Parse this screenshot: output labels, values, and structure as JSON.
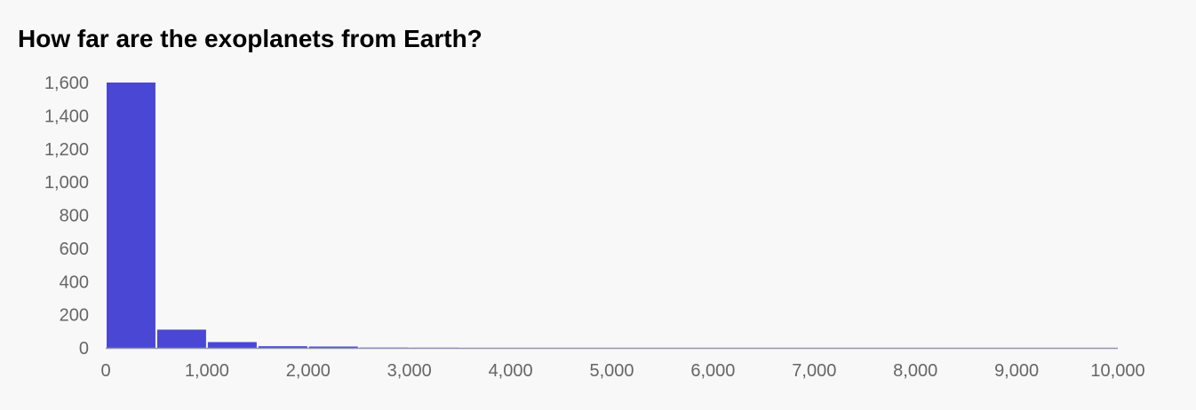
{
  "chart_data": {
    "type": "bar",
    "title": "How far are the exoplanets from Earth?",
    "xlabel": "",
    "ylabel": "",
    "bin_width": 500,
    "bins": [
      {
        "start": 0,
        "end": 500,
        "value": 1600
      },
      {
        "start": 500,
        "end": 1000,
        "value": 110
      },
      {
        "start": 1000,
        "end": 1500,
        "value": 35
      },
      {
        "start": 1500,
        "end": 2000,
        "value": 10
      },
      {
        "start": 2000,
        "end": 2500,
        "value": 8
      },
      {
        "start": 2500,
        "end": 3000,
        "value": 2
      },
      {
        "start": 3000,
        "end": 3500,
        "value": 1
      }
    ],
    "xlim": [
      0,
      10000
    ],
    "ylim": [
      0,
      1600
    ],
    "x_ticks": [
      0,
      1000,
      2000,
      3000,
      4000,
      5000,
      6000,
      7000,
      8000,
      9000,
      10000
    ],
    "x_tick_labels": [
      "0",
      "1,000",
      "2,000",
      "3,000",
      "4,000",
      "5,000",
      "6,000",
      "7,000",
      "8,000",
      "9,000",
      "10,000"
    ],
    "y_ticks": [
      0,
      200,
      400,
      600,
      800,
      1000,
      1200,
      1400,
      1600
    ],
    "y_tick_labels": [
      "0",
      "200",
      "400",
      "600",
      "800",
      "1,000",
      "1,200",
      "1,400",
      "1,600"
    ],
    "grid": false,
    "legend": "none",
    "colors": {
      "bar": "#4a47d4",
      "axis": "#8f96b0",
      "tick_text": "#666666",
      "background": "#f8f8f8"
    }
  }
}
